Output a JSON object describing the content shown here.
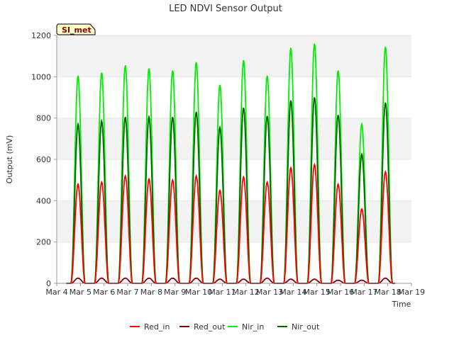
{
  "chart_data": {
    "type": "line",
    "title": "LED NDVI Sensor Output",
    "site_label": "SI_met",
    "xlabel": "Time",
    "ylabel": "Output (mV)",
    "xlim": [
      4,
      19
    ],
    "ylim": [
      0,
      1200
    ],
    "x_ticks": [
      4,
      5,
      6,
      7,
      8,
      9,
      10,
      11,
      12,
      13,
      14,
      15,
      16,
      17,
      18,
      19
    ],
    "x_tick_labels": [
      "Mar 4",
      "Mar 5",
      "Mar 6",
      "Mar 7",
      "Mar 8",
      "Mar 9",
      "Mar 10",
      "Mar 11",
      "Mar 12",
      "Mar 13",
      "Mar 14",
      "Mar 15",
      "Mar 16",
      "Mar 17",
      "Mar 18",
      "Mar 19"
    ],
    "y_ticks": [
      0,
      200,
      400,
      600,
      800,
      1000,
      1200
    ],
    "y_tick_labels": [
      "0",
      "200",
      "400",
      "600",
      "800",
      "1000",
      "1200"
    ],
    "grid": "horizontal bands",
    "legend_position": "bottom",
    "days": [
      4.9,
      5.9,
      6.9,
      7.9,
      8.9,
      9.9,
      10.9,
      11.9,
      12.9,
      13.9,
      14.9,
      15.9,
      16.9,
      17.9
    ],
    "series": [
      {
        "name": "Red_in",
        "color": "#ff0000",
        "daily_peaks": [
          480,
          490,
          520,
          505,
          500,
          520,
          450,
          515,
          490,
          560,
          575,
          480,
          360,
          540
        ]
      },
      {
        "name": "Red_out",
        "color": "#8b0000",
        "daily_peaks": [
          25,
          25,
          25,
          25,
          25,
          25,
          20,
          20,
          25,
          20,
          20,
          15,
          15,
          25
        ]
      },
      {
        "name": "Nir_in",
        "color": "#00ee00",
        "daily_peaks": [
          1005,
          1020,
          1055,
          1040,
          1030,
          1070,
          960,
          1080,
          1005,
          1140,
          1160,
          1030,
          770,
          1145
        ]
      },
      {
        "name": "Nir_out",
        "color": "#006400",
        "daily_peaks": [
          770,
          785,
          805,
          805,
          805,
          830,
          755,
          850,
          810,
          885,
          900,
          815,
          625,
          875
        ]
      }
    ]
  }
}
